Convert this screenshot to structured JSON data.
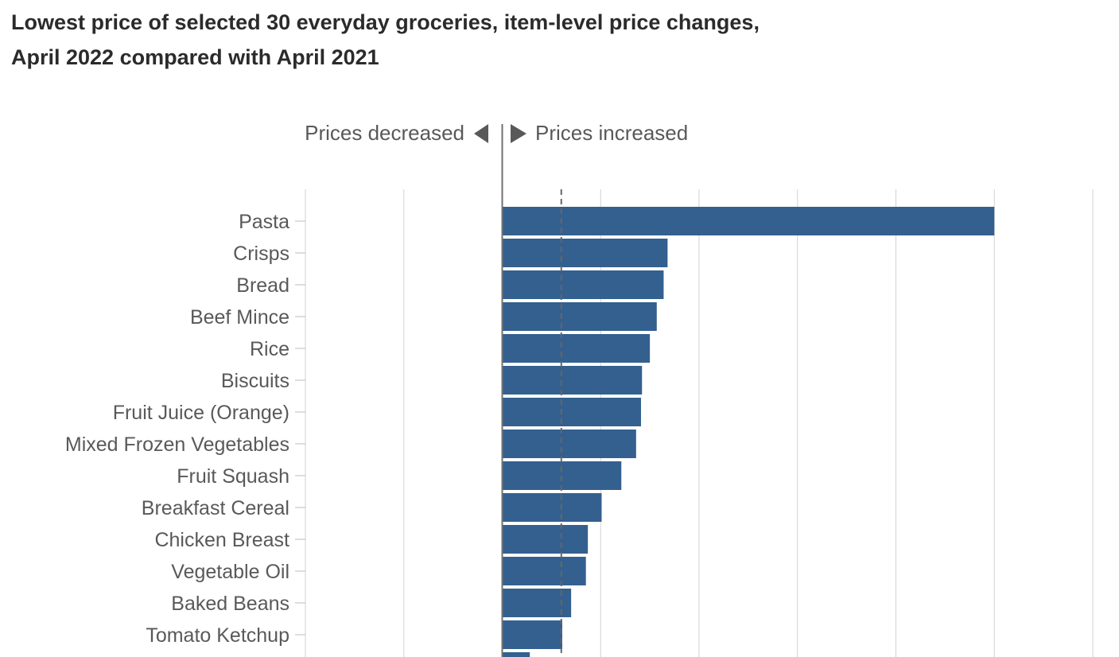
{
  "title": {
    "line1": "Lowest price of selected 30 everyday groceries, item-level price changes,",
    "line2": "April 2022 compared with April 2021"
  },
  "direction": {
    "decreased": "Prices decreased",
    "increased": "Prices increased"
  },
  "colors": {
    "bar": "#33608f",
    "text": "#595959",
    "title": "#2b2b2b"
  },
  "chart_data": {
    "type": "bar",
    "orientation": "horizontal",
    "categories": [
      "Pasta",
      "Crisps",
      "Bread",
      "Beef Mince",
      "Rice",
      "Biscuits",
      "Fruit Juice (Orange)",
      "Mixed Frozen Vegetables",
      "Fruit Squash",
      "Breakfast Cereal",
      "Chicken Breast",
      "Vegetable Oil",
      "Baked Beans",
      "Tomato Ketchup",
      ""
    ],
    "values": [
      50.0,
      16.8,
      16.4,
      15.7,
      15.0,
      14.2,
      14.1,
      13.6,
      12.1,
      10.1,
      8.7,
      8.5,
      7.0,
      6.1,
      2.8
    ],
    "average_line": 6.0,
    "xlim": [
      -20,
      60
    ],
    "x_gridlines": [
      -20,
      -10,
      0,
      10,
      20,
      30,
      40,
      50,
      60
    ],
    "grid": true,
    "legend": "none"
  }
}
